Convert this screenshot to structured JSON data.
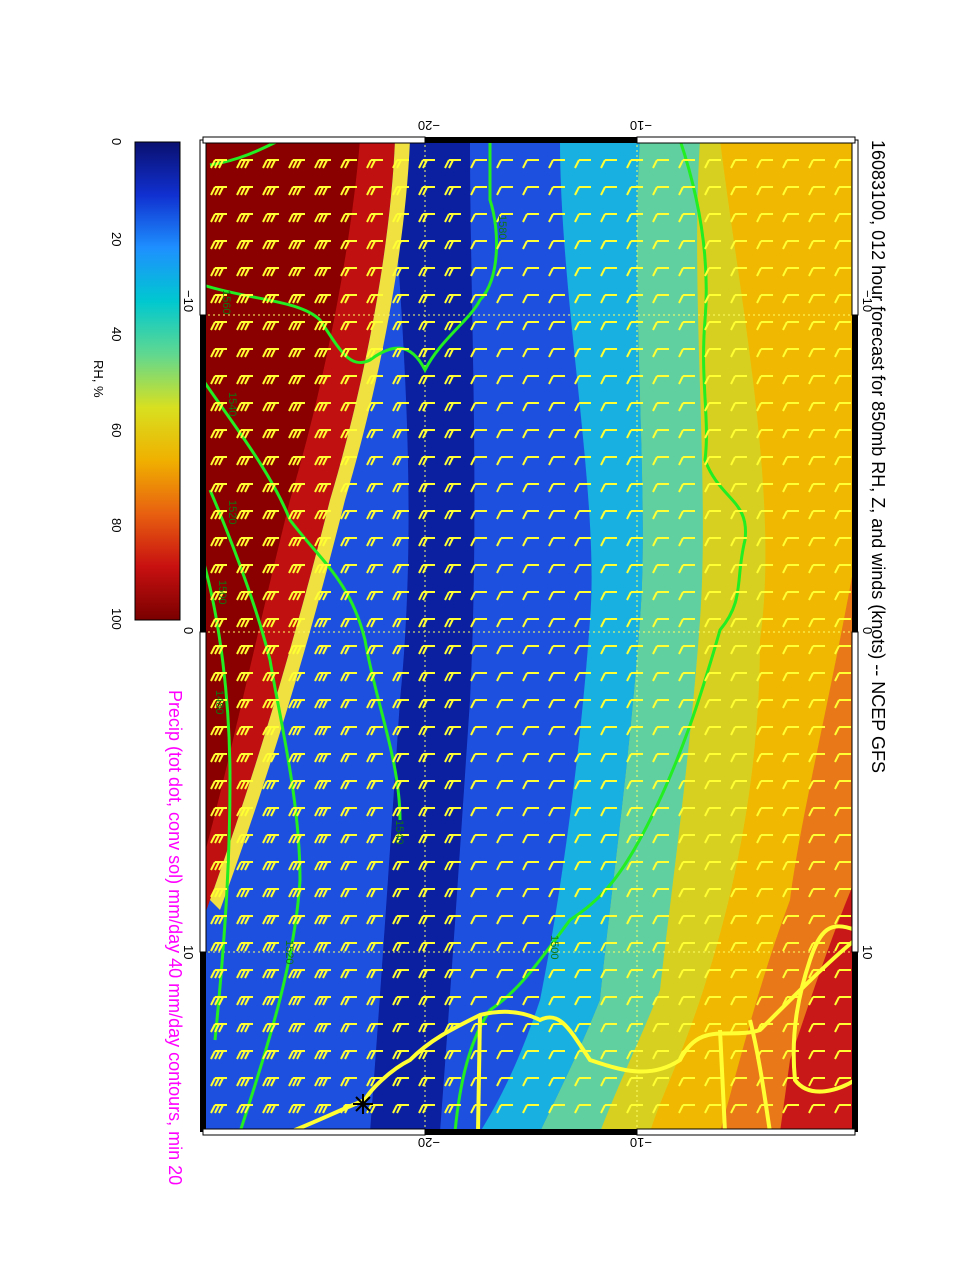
{
  "title": "16083100, 012 hour forecast for 850mb RH, Z, and winds (knots) -- NCEP GFS",
  "caption": "Precip (tot dot, conv sol) mm/day 40 mm/day contours, min 20",
  "colorbar": {
    "label": "RH, %",
    "ticks": [
      "0",
      "20",
      "40",
      "60",
      "80",
      "100"
    ],
    "colors": [
      "#0a1070",
      "#1030d0",
      "#1e90ff",
      "#00c8d0",
      "#60d890",
      "#d8e020",
      "#f0b000",
      "#e86010",
      "#c81010",
      "#7a0000"
    ]
  },
  "axes": {
    "lon_ticks": [
      "−10",
      "0",
      "10"
    ],
    "lat_ticks": [
      "−20",
      "−10"
    ]
  },
  "contours": {
    "color": "#22ee22",
    "labels": [
      "1560",
      "1560",
      "1540",
      "1520",
      "1500",
      "1480",
      "1500",
      "1520",
      "1540",
      "1580",
      "1560"
    ]
  },
  "coastline_color": "#ffff33",
  "wind_barb_color": "#ffff33",
  "storm_marker": "*"
}
